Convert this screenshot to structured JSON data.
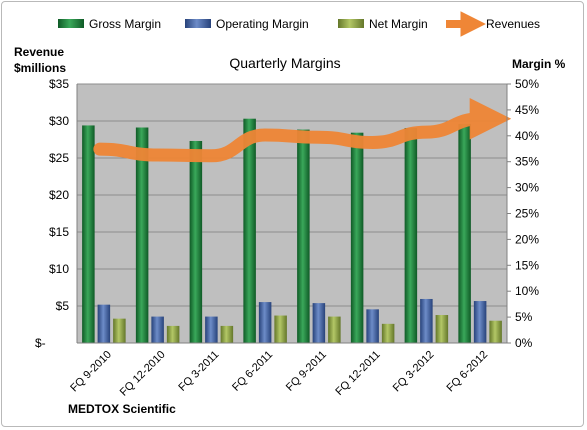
{
  "chart_data": {
    "type": "bar",
    "title": "Quarterly Margins",
    "company": "MEDTOX Scientific",
    "ylabel_left": [
      "Revenue",
      "$millions"
    ],
    "ylabel_right": "Margin %",
    "categories": [
      "FQ 9-2010",
      "FQ 12-2010",
      "FQ 3-2011",
      "FQ 6-2011",
      "FQ 9-2011",
      "FQ 12-2011",
      "FQ 3-2012",
      "FQ 6-2012"
    ],
    "ylim_left": [
      0,
      35
    ],
    "ylim_right": [
      0,
      50
    ],
    "left_ticks": [
      "$-",
      "$5",
      "$10",
      "$15",
      "$20",
      "$25",
      "$30",
      "$35"
    ],
    "left_tick_values": [
      0,
      5,
      10,
      15,
      20,
      25,
      30,
      35
    ],
    "right_ticks": [
      "0%",
      "5%",
      "10%",
      "15%",
      "20%",
      "25%",
      "30%",
      "35%",
      "40%",
      "45%",
      "50%"
    ],
    "right_tick_values": [
      0,
      5,
      10,
      15,
      20,
      25,
      30,
      35,
      40,
      45,
      50
    ],
    "grid": true,
    "legend_position": "top",
    "series": [
      {
        "name": "Gross Margin",
        "kind": "bar",
        "axis": "right",
        "color": "#1e7a3a",
        "values": [
          42,
          41.6,
          39,
          43.3,
          41.2,
          40.6,
          41.5,
          42.3
        ]
      },
      {
        "name": "Operating Margin",
        "kind": "bar",
        "axis": "right",
        "color": "#3d5d9e",
        "values": [
          7.4,
          5.1,
          5.1,
          7.9,
          7.7,
          6.5,
          8.5,
          8.1
        ]
      },
      {
        "name": "Net Margin",
        "kind": "bar",
        "axis": "right",
        "color": "#8aa03c",
        "values": [
          4.7,
          3.3,
          3.3,
          5.3,
          5.1,
          3.7,
          5.4,
          4.3
        ]
      },
      {
        "name": "Revenues",
        "kind": "line",
        "axis": "left",
        "color": "#ef8636",
        "values": [
          26.2,
          25.4,
          25.3,
          28.1,
          27.8,
          27.1,
          28.5,
          30.3
        ]
      }
    ],
    "colors": {
      "plot_background": "#bfbfbf",
      "grid": "#8c8c8c"
    }
  }
}
